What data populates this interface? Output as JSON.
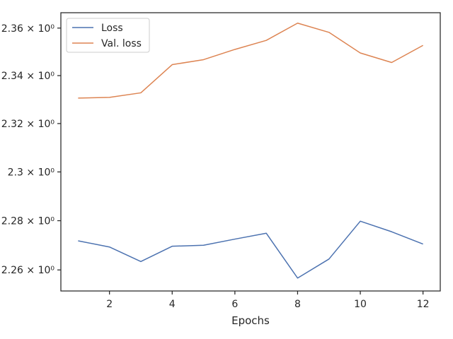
{
  "chart_data": {
    "type": "line",
    "title": "",
    "xlabel": "Epochs",
    "ylabel": "",
    "y_scale": "log",
    "grid": false,
    "legend_position": "top-left",
    "x": [
      1,
      2,
      3,
      4,
      5,
      6,
      7,
      8,
      9,
      10,
      11,
      12
    ],
    "x_ticks": [
      2,
      4,
      6,
      8,
      10,
      12
    ],
    "y_ticks": [
      2.26,
      2.28,
      2.3,
      2.32,
      2.34,
      2.36
    ],
    "y_tick_labels": [
      "2.26 × 10⁰",
      "2.28 × 10⁰",
      "2.3 × 10⁰",
      "2.32 × 10⁰",
      "2.34 × 10⁰",
      "2.36 × 10⁰"
    ],
    "xlim": [
      0.45,
      12.55
    ],
    "ylim": [
      2.2515,
      2.3665
    ],
    "series": [
      {
        "name": "Loss",
        "color": "#4c72b0",
        "values": [
          2.2718,
          2.2693,
          2.2634,
          2.2696,
          2.27,
          2.2725,
          2.2749,
          2.2567,
          2.2644,
          2.2798,
          2.2755,
          2.2705
        ]
      },
      {
        "name": "Val. loss",
        "color": "#dd8452",
        "values": [
          2.3306,
          2.3309,
          2.3328,
          2.3446,
          2.3467,
          2.351,
          2.3548,
          2.3621,
          2.3582,
          2.3495,
          2.3455,
          2.3527
        ]
      }
    ]
  }
}
